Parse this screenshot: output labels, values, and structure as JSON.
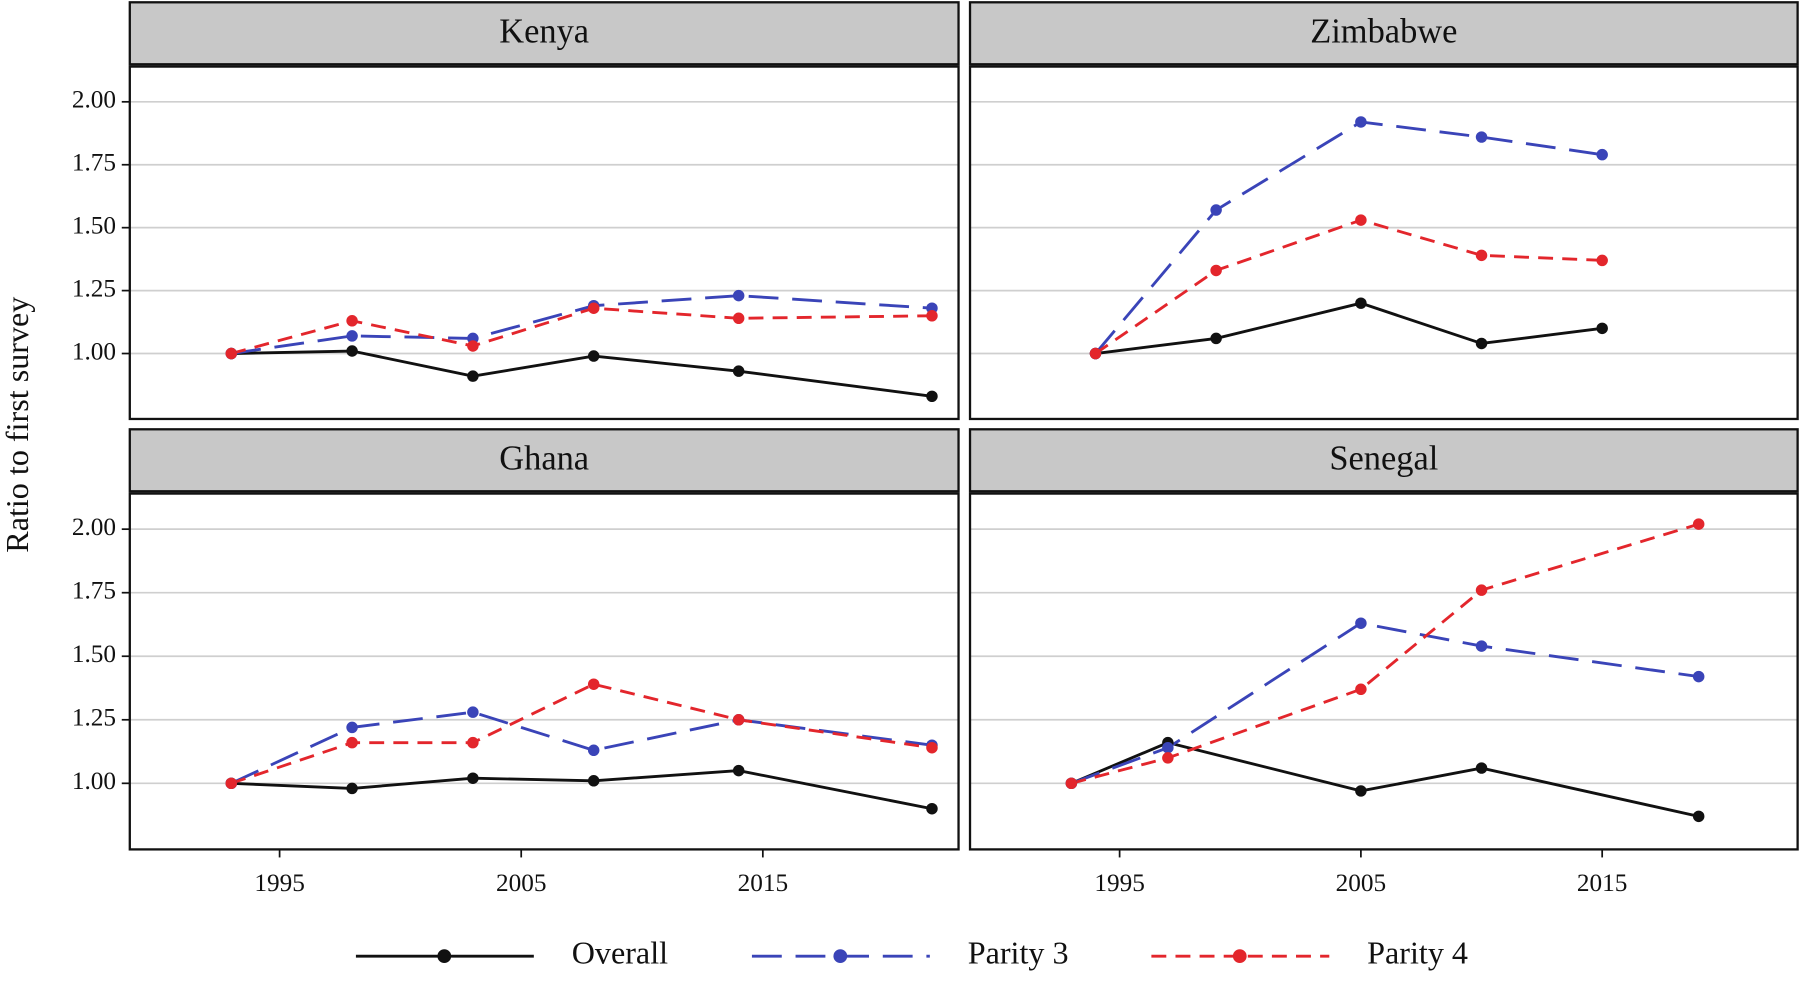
{
  "y_label": "Ratio to first survey",
  "chart_data": [
    {
      "type": "line",
      "title": "Kenya",
      "x": [
        1993,
        1998,
        2003,
        2008,
        2014,
        2022
      ],
      "series": [
        {
          "name": "Overall",
          "color": "#111111",
          "linestyle": "solid",
          "values": [
            1.0,
            1.01,
            0.91,
            0.99,
            0.93,
            0.83
          ]
        },
        {
          "name": "Parity 3",
          "color": "#3a44b8",
          "linestyle": "longdash",
          "values": [
            1.0,
            1.07,
            1.06,
            1.19,
            1.23,
            1.18
          ]
        },
        {
          "name": "Parity 4",
          "color": "#e3262c",
          "linestyle": "dashed",
          "values": [
            1.0,
            1.13,
            1.03,
            1.18,
            1.14,
            1.15
          ]
        }
      ],
      "xlim": [
        1988.8,
        2023.1
      ],
      "ylim": [
        0.74,
        2.14
      ],
      "xticks": [
        1995,
        2005,
        2015
      ],
      "yticks": [
        {
          "value": 1,
          "label": "1.00"
        },
        {
          "value": 1.25,
          "label": "1.25"
        },
        {
          "value": 1.5,
          "label": "1.50"
        },
        {
          "value": 1.75,
          "label": "1.75"
        },
        {
          "value": 2,
          "label": "2.00"
        }
      ],
      "grid": true
    },
    {
      "type": "line",
      "title": "Zimbabwe",
      "x": [
        1994,
        1999,
        2005,
        2010,
        2015
      ],
      "series": [
        {
          "name": "Overall",
          "color": "#111111",
          "linestyle": "solid",
          "values": [
            1.0,
            1.06,
            1.2,
            1.04,
            1.1
          ]
        },
        {
          "name": "Parity 3",
          "color": "#3a44b8",
          "linestyle": "longdash",
          "values": [
            1.0,
            1.57,
            1.92,
            1.86,
            1.79
          ]
        },
        {
          "name": "Parity 4",
          "color": "#e3262c",
          "linestyle": "dashed",
          "values": [
            1.0,
            1.33,
            1.53,
            1.39,
            1.37
          ]
        }
      ],
      "xlim": [
        1988.8,
        2023.1
      ],
      "ylim": [
        0.74,
        2.14
      ],
      "xticks": [
        1995,
        2005,
        2015
      ],
      "yticks": [
        {
          "value": 1,
          "label": "1.00"
        },
        {
          "value": 1.25,
          "label": "1.25"
        },
        {
          "value": 1.5,
          "label": "1.50"
        },
        {
          "value": 1.75,
          "label": "1.75"
        },
        {
          "value": 2,
          "label": "2.00"
        }
      ],
      "grid": true
    },
    {
      "type": "line",
      "title": "Ghana",
      "x": [
        1993,
        1998,
        2003,
        2008,
        2014,
        2022
      ],
      "series": [
        {
          "name": "Overall",
          "color": "#111111",
          "linestyle": "solid",
          "values": [
            1.0,
            0.98,
            1.02,
            1.01,
            1.05,
            0.9
          ]
        },
        {
          "name": "Parity 3",
          "color": "#3a44b8",
          "linestyle": "longdash",
          "values": [
            1.0,
            1.22,
            1.28,
            1.13,
            1.25,
            1.15
          ]
        },
        {
          "name": "Parity 4",
          "color": "#e3262c",
          "linestyle": "dashed",
          "values": [
            1.0,
            1.16,
            1.16,
            1.39,
            1.25,
            1.14
          ]
        }
      ],
      "xlim": [
        1988.8,
        2023.1
      ],
      "ylim": [
        0.74,
        2.14
      ],
      "xticks": [
        1995,
        2005,
        2015
      ],
      "yticks": [
        {
          "value": 1,
          "label": "1.00"
        },
        {
          "value": 1.25,
          "label": "1.25"
        },
        {
          "value": 1.5,
          "label": "1.50"
        },
        {
          "value": 1.75,
          "label": "1.75"
        },
        {
          "value": 2,
          "label": "2.00"
        }
      ],
      "grid": true
    },
    {
      "type": "line",
      "title": "Senegal",
      "x": [
        1993,
        1997,
        2005,
        2010,
        2019
      ],
      "series": [
        {
          "name": "Overall",
          "color": "#111111",
          "linestyle": "solid",
          "values": [
            1.0,
            1.16,
            0.97,
            1.06,
            0.87
          ]
        },
        {
          "name": "Parity 3",
          "color": "#3a44b8",
          "linestyle": "longdash",
          "values": [
            1.0,
            1.14,
            1.63,
            1.54,
            1.42
          ]
        },
        {
          "name": "Parity 4",
          "color": "#e3262c",
          "linestyle": "dashed",
          "values": [
            1.0,
            1.1,
            1.37,
            1.76,
            2.02
          ]
        }
      ],
      "xlim": [
        1988.8,
        2023.1
      ],
      "ylim": [
        0.74,
        2.14
      ],
      "xticks": [
        1995,
        2005,
        2015
      ],
      "yticks": [
        {
          "value": 1,
          "label": "1.00"
        },
        {
          "value": 1.25,
          "label": "1.25"
        },
        {
          "value": 1.5,
          "label": "1.50"
        },
        {
          "value": 1.75,
          "label": "1.75"
        },
        {
          "value": 2,
          "label": "2.00"
        }
      ],
      "grid": true
    }
  ]
}
